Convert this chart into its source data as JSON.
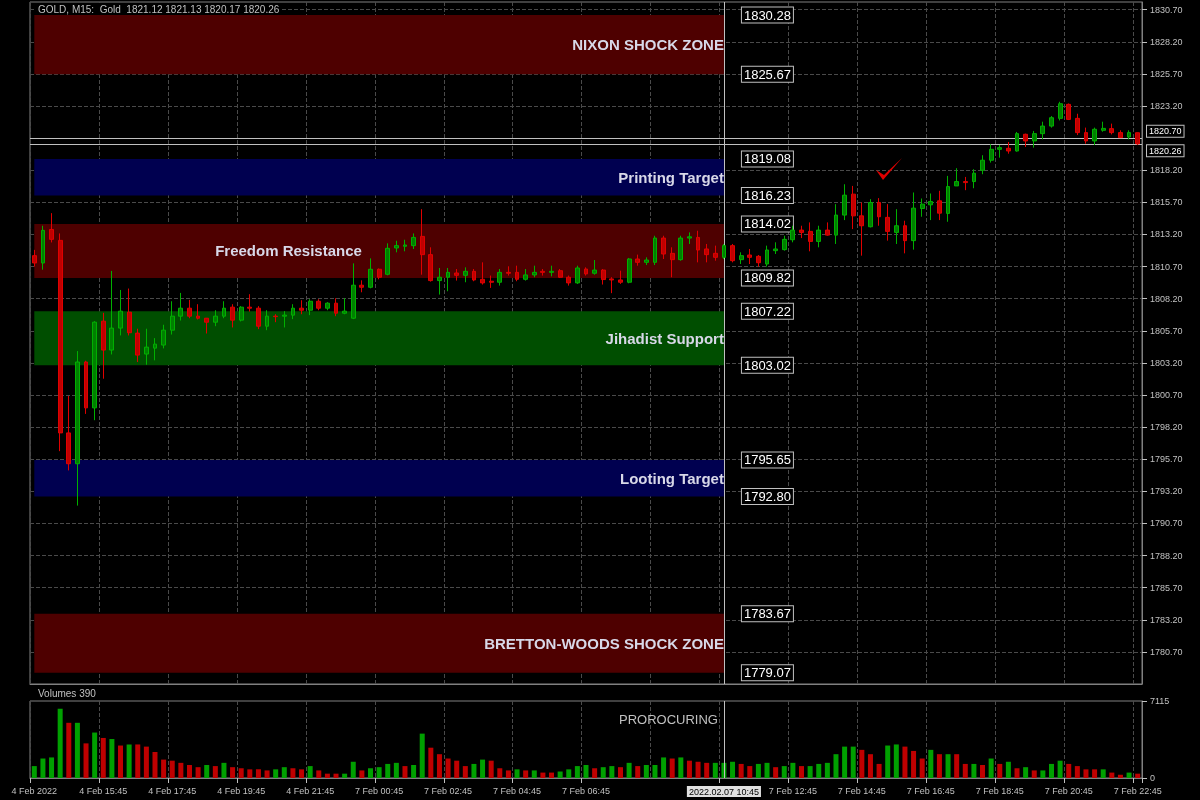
{
  "chart_data": [
    {
      "type": "candlestick",
      "title": "GOLD, M15:  Gold  1821.12 1821.13 1820.17 1820.26",
      "categories": [
        "4 Feb 2022",
        null,
        null,
        null,
        null,
        null,
        null,
        null,
        "4 Feb 15:45",
        null,
        null,
        null,
        null,
        null,
        null,
        null,
        "4 Feb 17:45",
        null,
        null,
        null,
        null,
        null,
        null,
        null,
        "4 Feb 19:45",
        null,
        null,
        null,
        null,
        null,
        null,
        null,
        "4 Feb 21:45",
        null,
        null,
        null,
        null,
        null,
        null,
        null,
        "7 Feb 00:45",
        null,
        null,
        null,
        null,
        null,
        null,
        null,
        "7 Feb 02:45",
        null,
        null,
        null,
        null,
        null,
        null,
        null,
        "7 Feb 04:45",
        null,
        null,
        null,
        null,
        null,
        null,
        null,
        "7 Feb 06:45",
        null,
        null,
        null,
        null,
        null,
        null,
        null,
        null,
        null,
        null,
        null,
        null,
        null,
        null,
        null,
        "2022.02.07 10:45",
        null,
        null,
        null,
        null,
        null,
        null,
        null,
        "7 Feb 12:45",
        null,
        null,
        null,
        null,
        null,
        null,
        null,
        "7 Feb 14:45",
        null,
        null,
        null,
        null,
        null,
        null,
        null,
        "7 Feb 16:45",
        null,
        null,
        null,
        null,
        null,
        null,
        null,
        "7 Feb 18:45",
        null,
        null,
        null,
        null,
        null,
        null,
        null,
        "7 Feb 20:45",
        null,
        null,
        null,
        null,
        null,
        null,
        null,
        "7 Feb 22:45"
      ],
      "ohlc": [
        [
          1811.55,
          1812.0,
          1810.7,
          1810.98
        ],
        [
          1810.98,
          1813.88,
          1810.46,
          1813.52
        ],
        [
          1813.59,
          1814.86,
          1812.58,
          1812.82
        ],
        [
          1812.74,
          1813.28,
          1796.33,
          1797.75
        ],
        [
          1797.75,
          1800.63,
          1794.83,
          1795.35
        ],
        [
          1795.35,
          1804.12,
          1792.09,
          1803.27
        ],
        [
          1803.27,
          1803.37,
          1799.23,
          1799.7
        ],
        [
          1799.7,
          1806.45,
          1798.74,
          1806.37
        ],
        [
          1806.45,
          1807.1,
          1801.97,
          1804.2
        ],
        [
          1804.2,
          1810.36,
          1803.86,
          1805.91
        ],
        [
          1805.91,
          1808.88,
          1805.34,
          1807.23
        ],
        [
          1807.15,
          1808.99,
          1805.34,
          1805.55
        ],
        [
          1805.52,
          1805.86,
          1803.27,
          1803.81
        ],
        [
          1803.89,
          1805.86,
          1803.06,
          1804.43
        ],
        [
          1804.35,
          1805.13,
          1803.4,
          1804.66
        ],
        [
          1804.59,
          1806.17,
          1804.33,
          1805.75
        ],
        [
          1805.75,
          1808.0,
          1805.41,
          1806.84
        ],
        [
          1806.84,
          1808.65,
          1806.5,
          1807.46
        ],
        [
          1807.46,
          1808.11,
          1806.68,
          1806.84
        ],
        [
          1806.84,
          1807.77,
          1806.58,
          1806.68
        ],
        [
          1806.68,
          1806.7,
          1805.49,
          1806.37
        ],
        [
          1806.37,
          1807.3,
          1806.06,
          1806.84
        ],
        [
          1806.84,
          1808.0,
          1806.68,
          1807.46
        ],
        [
          1807.54,
          1807.77,
          1805.96,
          1806.53
        ],
        [
          1806.53,
          1807.62,
          1806.43,
          1807.54
        ],
        [
          1807.54,
          1808.55,
          1807.2,
          1807.46
        ],
        [
          1807.46,
          1807.62,
          1805.83,
          1806.06
        ],
        [
          1806.06,
          1807.3,
          1805.75,
          1806.84
        ],
        [
          1806.84,
          1806.99,
          1806.37,
          1806.8
        ],
        [
          1806.84,
          1807.23,
          1805.96,
          1806.92
        ],
        [
          1806.92,
          1807.77,
          1806.61,
          1807.46
        ],
        [
          1807.46,
          1808.08,
          1806.99,
          1807.3
        ],
        [
          1807.3,
          1808.16,
          1806.92,
          1808.0
        ],
        [
          1808.0,
          1808.16,
          1807.3,
          1807.46
        ],
        [
          1807.46,
          1807.93,
          1807.3,
          1807.85
        ],
        [
          1807.85,
          1808.24,
          1806.84,
          1807.07
        ],
        [
          1807.07,
          1808.24,
          1806.99,
          1807.23
        ],
        [
          1806.68,
          1810.95,
          1806.61,
          1809.25
        ],
        [
          1809.25,
          1809.63,
          1808.7,
          1809.09
        ],
        [
          1809.09,
          1811.34,
          1809.01,
          1810.49
        ],
        [
          1810.49,
          1810.55,
          1809.71,
          1809.87
        ],
        [
          1810.1,
          1812.51,
          1810.02,
          1812.12
        ],
        [
          1812.15,
          1812.71,
          1811.81,
          1812.33
        ],
        [
          1812.28,
          1812.79,
          1811.89,
          1812.38
        ],
        [
          1812.33,
          1813.28,
          1812.07,
          1812.97
        ],
        [
          1813.05,
          1815.17,
          1810.07,
          1811.63
        ],
        [
          1811.63,
          1812.2,
          1809.53,
          1809.61
        ],
        [
          1809.61,
          1810.59,
          1808.52,
          1809.87
        ],
        [
          1809.87,
          1810.59,
          1808.78,
          1810.25
        ],
        [
          1810.2,
          1810.51,
          1809.61,
          1810.02
        ],
        [
          1810.02,
          1810.64,
          1809.48,
          1810.33
        ],
        [
          1810.33,
          1810.51,
          1809.56,
          1809.66
        ],
        [
          1809.71,
          1811.03,
          1809.3,
          1809.43
        ],
        [
          1809.56,
          1810.0,
          1809.04,
          1809.48
        ],
        [
          1809.48,
          1810.51,
          1809.22,
          1810.25
        ],
        [
          1810.25,
          1810.72,
          1810.0,
          1810.18
        ],
        [
          1810.25,
          1810.77,
          1809.56,
          1809.71
        ],
        [
          1809.71,
          1810.51,
          1809.61,
          1810.05
        ],
        [
          1810.05,
          1810.77,
          1809.87,
          1810.25
        ],
        [
          1810.33,
          1810.51,
          1810.0,
          1810.25
        ],
        [
          1810.25,
          1810.77,
          1809.94,
          1810.33
        ],
        [
          1810.38,
          1810.51,
          1809.81,
          1809.87
        ],
        [
          1809.87,
          1810.0,
          1809.22,
          1809.43
        ],
        [
          1809.43,
          1810.77,
          1809.35,
          1810.59
        ],
        [
          1810.51,
          1810.64,
          1810.0,
          1810.13
        ],
        [
          1810.18,
          1811.21,
          1810.07,
          1810.43
        ],
        [
          1810.43,
          1810.51,
          1809.3,
          1809.69
        ],
        [
          1809.74,
          1809.87,
          1808.63,
          1809.66
        ],
        [
          1809.66,
          1810.38,
          1809.35,
          1809.48
        ],
        [
          1809.48,
          1811.37,
          1809.4,
          1811.29
        ],
        [
          1811.29,
          1811.63,
          1810.77,
          1811.03
        ],
        [
          1811.03,
          1811.42,
          1810.82,
          1811.21
        ],
        [
          1811.03,
          1813.1,
          1810.82,
          1812.92
        ],
        [
          1812.92,
          1813.1,
          1811.29,
          1811.68
        ],
        [
          1811.73,
          1812.2,
          1809.87,
          1811.24
        ],
        [
          1811.24,
          1813.1,
          1811.16,
          1812.92
        ],
        [
          1812.92,
          1813.36,
          1812.46,
          1813.02
        ],
        [
          1812.97,
          1813.49,
          1811.03,
          1811.99
        ],
        [
          1812.07,
          1812.46,
          1811.03,
          1811.63
        ],
        [
          1811.73,
          1812.33,
          1811.16,
          1811.42
        ],
        [
          1811.42,
          1812.46,
          1811.29,
          1812.33
        ],
        [
          1812.33,
          1812.46,
          1811.03,
          1811.16
        ],
        [
          1811.24,
          1811.81,
          1810.9,
          1811.55
        ],
        [
          1811.6,
          1812.07,
          1810.9,
          1811.42
        ],
        [
          1811.5,
          1811.6,
          1810.7,
          1811.0
        ],
        [
          1810.9,
          1812.33,
          1810.7,
          1811.99
        ],
        [
          1811.94,
          1812.59,
          1811.68,
          1812.07
        ],
        [
          1812.02,
          1813.1,
          1811.94,
          1812.82
        ],
        [
          1812.79,
          1813.88,
          1812.59,
          1813.54
        ],
        [
          1813.54,
          1813.88,
          1812.92,
          1813.36
        ],
        [
          1813.44,
          1814.14,
          1811.89,
          1812.66
        ],
        [
          1812.66,
          1813.88,
          1812.2,
          1813.54
        ],
        [
          1813.54,
          1814.14,
          1813.1,
          1813.15
        ],
        [
          1813.15,
          1815.56,
          1812.46,
          1814.71
        ],
        [
          1814.71,
          1817.11,
          1814.32,
          1816.26
        ],
        [
          1816.34,
          1816.98,
          1813.62,
          1814.65
        ],
        [
          1814.65,
          1815.69,
          1811.55,
          1813.88
        ],
        [
          1813.8,
          1815.95,
          1813.75,
          1815.69
        ],
        [
          1815.69,
          1816.03,
          1813.88,
          1814.58
        ],
        [
          1814.53,
          1815.56,
          1812.72,
          1813.44
        ],
        [
          1813.36,
          1815.17,
          1812.46,
          1813.88
        ],
        [
          1813.88,
          1814.27,
          1811.73,
          1812.72
        ],
        [
          1812.72,
          1816.47,
          1812.02,
          1815.25
        ],
        [
          1815.22,
          1816.0,
          1814.58,
          1815.56
        ],
        [
          1815.51,
          1816.39,
          1814.32,
          1815.77
        ],
        [
          1815.82,
          1816.6,
          1814.32,
          1814.86
        ],
        [
          1814.84,
          1817.76,
          1814.19,
          1816.93
        ],
        [
          1816.98,
          1818.36,
          1816.98,
          1817.32
        ],
        [
          1817.32,
          1817.68,
          1816.65,
          1817.24
        ],
        [
          1817.32,
          1818.28,
          1816.8,
          1817.97
        ],
        [
          1818.2,
          1819.37,
          1817.89,
          1818.98
        ],
        [
          1818.98,
          1820.22,
          1818.8,
          1819.83
        ],
        [
          1819.83,
          1820.17,
          1819.18,
          1819.96
        ],
        [
          1819.91,
          1820.4,
          1819.49,
          1819.7
        ],
        [
          1819.7,
          1821.18,
          1819.65,
          1821.05
        ],
        [
          1821.0,
          1821.05,
          1820.01,
          1820.48
        ],
        [
          1820.48,
          1821.26,
          1819.96,
          1821.05
        ],
        [
          1821.05,
          1821.98,
          1820.61,
          1821.64
        ],
        [
          1821.64,
          1822.42,
          1821.52,
          1822.29
        ],
        [
          1822.24,
          1823.53,
          1822.08,
          1823.38
        ],
        [
          1823.33,
          1823.4,
          1822.11,
          1822.16
        ],
        [
          1822.24,
          1822.6,
          1820.94,
          1821.13
        ],
        [
          1821.13,
          1821.52,
          1820.27,
          1820.48
        ],
        [
          1820.48,
          1821.52,
          1820.17,
          1821.39
        ],
        [
          1821.31,
          1821.98,
          1821.2,
          1821.46
        ],
        [
          1821.44,
          1821.83,
          1820.99,
          1821.13
        ],
        [
          1821.13,
          1821.31,
          1820.74,
          1820.74
        ],
        [
          1820.79,
          1821.31,
          1820.61,
          1821.13
        ],
        [
          1821.12,
          1821.13,
          1820.17,
          1820.26
        ]
      ],
      "ylim": [
        1778.2,
        1831.3
      ],
      "yticks": [
        {
          "value": 1780.7,
          "label": "1780.70"
        },
        {
          "value": 1783.2,
          "label": "1783.20"
        },
        {
          "value": 1785.7,
          "label": "1785.70"
        },
        {
          "value": 1788.2,
          "label": "1788.20"
        },
        {
          "value": 1790.7,
          "label": "1790.70"
        },
        {
          "value": 1793.2,
          "label": "1793.20"
        },
        {
          "value": 1795.7,
          "label": "1795.70"
        },
        {
          "value": 1798.2,
          "label": "1798.20"
        },
        {
          "value": 1800.7,
          "label": "1800.70"
        },
        {
          "value": 1803.2,
          "label": "1803.20"
        },
        {
          "value": 1805.7,
          "label": "1805.70"
        },
        {
          "value": 1808.2,
          "label": "1808.20"
        },
        {
          "value": 1810.7,
          "label": "1810.70"
        },
        {
          "value": 1813.2,
          "label": "1813.20"
        },
        {
          "value": 1815.7,
          "label": "1815.70"
        },
        {
          "value": 1818.2,
          "label": "1818.20"
        },
        {
          "value": 1823.2,
          "label": "1823.20"
        },
        {
          "value": 1825.7,
          "label": "1825.70"
        },
        {
          "value": 1828.2,
          "label": "1828.20"
        },
        {
          "value": 1830.7,
          "label": "1830.70"
        }
      ],
      "grid": true,
      "tick_labels": "y",
      "bands": [
        {
          "axis": "y",
          "from": 1825.67,
          "to": 1830.28,
          "label": "NIXON SHOCK ZONE",
          "color": "#4e0000"
        },
        {
          "axis": "y",
          "from": 1816.23,
          "to": 1819.08,
          "label": "Printing Target",
          "color": "#000050"
        },
        {
          "axis": "y",
          "from": 1809.82,
          "to": 1814.02,
          "label": "Freedom Resistance",
          "color": "#4e0000"
        },
        {
          "axis": "y",
          "from": 1803.02,
          "to": 1807.22,
          "label": "Jihadist Support",
          "color": "#004e00"
        },
        {
          "axis": "y",
          "from": 1792.8,
          "to": 1795.65,
          "label": "Looting Target",
          "color": "#000050"
        },
        {
          "axis": "y",
          "from": 1779.07,
          "to": 1783.67,
          "label": "BRETTON-WOODS SHOCK ZONE",
          "color": "#4e0000"
        }
      ],
      "ref_lines": [
        {
          "axis": "y",
          "value": 1820.7,
          "label": "1820.70",
          "color": "#c0c0c0"
        },
        {
          "axis": "y",
          "value": 1820.26,
          "label": "1820.26",
          "color": "#c0c0c0"
        },
        {
          "axis": "x",
          "value": "2022.02.07 10:45",
          "color": "#c0c0c0"
        }
      ],
      "annotations": [
        "1830.28",
        "1825.67",
        "1819.08",
        "1816.23",
        "1814.02",
        "1809.82",
        "1807.22",
        "1803.02",
        "1795.65",
        "1792.80",
        "1783.67",
        "1779.07"
      ]
    },
    {
      "type": "bar",
      "title": "Volumes 390",
      "categories": [
        "4 Feb 2022",
        null,
        null,
        null,
        null,
        null,
        null,
        null,
        "4 Feb 15:45",
        null,
        null,
        null,
        null,
        null,
        null,
        null,
        "4 Feb 17:45",
        null,
        null,
        null,
        null,
        null,
        null,
        null,
        "4 Feb 19:45",
        null,
        null,
        null,
        null,
        null,
        null,
        null,
        "4 Feb 21:45",
        null,
        null,
        null,
        null,
        null,
        null,
        null,
        "7 Feb 00:45",
        null,
        null,
        null,
        null,
        null,
        null,
        null,
        "7 Feb 02:45",
        null,
        null,
        null,
        null,
        null,
        null,
        null,
        "7 Feb 04:45",
        null,
        null,
        null,
        null,
        null,
        null,
        null,
        "7 Feb 06:45",
        null,
        null,
        null,
        null,
        null,
        null,
        null,
        null,
        null,
        null,
        null,
        null,
        null,
        null,
        null,
        "2022.02.07 10:45",
        null,
        null,
        null,
        null,
        null,
        null,
        null,
        "7 Feb 12:45",
        null,
        null,
        null,
        null,
        null,
        null,
        null,
        "7 Feb 14:45",
        null,
        null,
        null,
        null,
        null,
        null,
        null,
        "7 Feb 16:45",
        null,
        null,
        null,
        null,
        null,
        null,
        null,
        "7 Feb 18:45",
        null,
        null,
        null,
        null,
        null,
        null,
        null,
        "7 Feb 20:45",
        null,
        null,
        null,
        null,
        null,
        null,
        null,
        "7 Feb 22:45"
      ],
      "values": [
        1100,
        1800,
        1900,
        6400,
        5100,
        5100,
        3200,
        4200,
        3700,
        3600,
        3000,
        3100,
        3100,
        2900,
        2400,
        1700,
        1600,
        1400,
        1200,
        1000,
        1200,
        1100,
        1400,
        1000,
        900,
        800,
        800,
        700,
        800,
        1000,
        900,
        800,
        1100,
        700,
        400,
        400,
        400,
        1500,
        700,
        900,
        1000,
        1300,
        1400,
        1100,
        1200,
        4100,
        2800,
        2200,
        1800,
        1600,
        1100,
        1300,
        1700,
        1600,
        900,
        700,
        800,
        700,
        700,
        500,
        500,
        600,
        800,
        1100,
        1200,
        900,
        1000,
        1100,
        1000,
        1400,
        1100,
        1200,
        1200,
        1900,
        1800,
        1900,
        1600,
        1500,
        1400,
        1400,
        1400,
        1500,
        1300,
        1100,
        1300,
        1400,
        1000,
        1100,
        1400,
        1100,
        1100,
        1300,
        1400,
        2200,
        2900,
        2900,
        2600,
        2200,
        1300,
        3000,
        3100,
        2900,
        2500,
        1800,
        2600,
        2200,
        2200,
        2200,
        1300,
        1300,
        1200,
        1800,
        1300,
        1500,
        900,
        1000,
        700,
        700,
        1300,
        1600,
        1300,
        1100,
        800,
        800,
        800,
        500,
        300,
        500,
        400
      ],
      "colors": [
        "#00a000",
        "#00a000",
        "#00a000",
        "#00a000",
        "#c00000",
        "#00a000",
        "#c00000",
        "#00a000",
        "#c00000",
        "#00a000",
        "#c00000",
        "#00a000",
        "#c00000",
        "#c00000",
        "#c00000",
        "#c00000",
        "#c00000",
        "#c00000",
        "#c00000",
        "#c00000",
        "#00a000",
        "#c00000",
        "#00a000",
        "#c00000",
        "#c00000",
        "#c00000",
        "#c00000",
        "#c00000",
        "#00a000",
        "#00a000",
        "#c00000",
        "#c00000",
        "#00a000",
        "#c00000",
        "#c00000",
        "#c00000",
        "#00a000",
        "#00a000",
        "#c00000",
        "#00a000",
        "#00a000",
        "#00a000",
        "#00a000",
        "#c00000",
        "#00a000",
        "#00a000",
        "#c00000",
        "#c00000",
        "#c00000",
        "#c00000",
        "#c00000",
        "#00a000",
        "#00a000",
        "#c00000",
        "#c00000",
        "#c00000",
        "#00a000",
        "#c00000",
        "#00a000",
        "#c00000",
        "#c00000",
        "#00a000",
        "#00a000",
        "#00a000",
        "#00a000",
        "#c00000",
        "#00a000",
        "#00a000",
        "#c00000",
        "#00a000",
        "#c00000",
        "#00a000",
        "#00a000",
        "#00a000",
        "#c00000",
        "#00a000",
        "#c00000",
        "#c00000",
        "#c00000",
        "#00a000",
        "#00a000",
        "#00a000",
        "#c00000",
        "#c00000",
        "#00a000",
        "#00a000",
        "#c00000",
        "#00a000",
        "#00a000",
        "#c00000",
        "#00a000",
        "#00a000",
        "#00a000",
        "#00a000",
        "#00a000",
        "#00a000",
        "#c00000",
        "#c00000",
        "#c00000",
        "#00a000",
        "#00a000",
        "#c00000",
        "#c00000",
        "#c00000",
        "#00a000",
        "#c00000",
        "#00a000",
        "#c00000",
        "#c00000",
        "#00a000",
        "#c00000",
        "#00a000",
        "#c00000",
        "#00a000",
        "#c00000",
        "#00a000",
        "#c00000",
        "#00a000",
        "#00a000",
        "#00a000",
        "#c00000",
        "#c00000",
        "#c00000",
        "#c00000",
        "#00a000",
        "#c00000",
        "#c00000",
        "#00a000",
        "#c00000"
      ],
      "ylim": [
        0,
        7115
      ],
      "yticks": [
        0,
        7115
      ],
      "grid": "x",
      "ref_lines": [
        {
          "axis": "x",
          "value": "2022.02.07 10:45",
          "color": "#c0c0c0"
        }
      ],
      "annotations": [
        "PROROCURING"
      ]
    }
  ]
}
